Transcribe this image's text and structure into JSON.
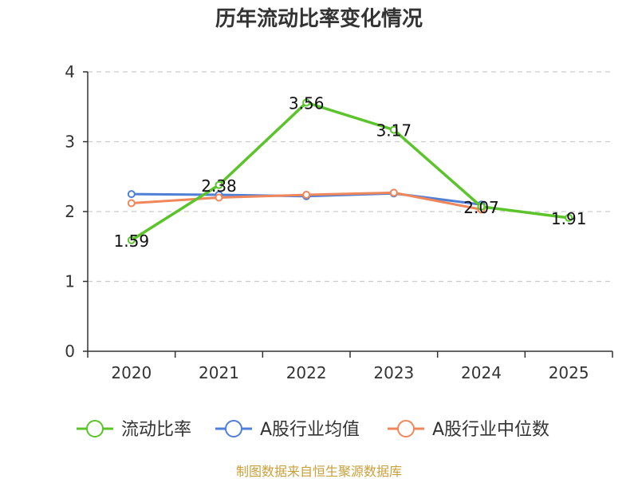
{
  "chart_data": {
    "type": "line",
    "title": "历年流动比率变化情况",
    "categories": [
      "2020",
      "2021",
      "2022",
      "2023",
      "2024",
      "2025"
    ],
    "y_ticks": [
      "0",
      "1",
      "2",
      "3",
      "4"
    ],
    "ylim": [
      0,
      4
    ],
    "grid": true,
    "legend_position": "bottom",
    "series": [
      {
        "name": "流动比率",
        "color": "#5cc42b",
        "values": [
          1.59,
          2.38,
          3.56,
          3.17,
          2.07,
          1.91
        ],
        "labels": [
          "1.59",
          "2.38",
          "3.56",
          "3.17",
          "2.07",
          "1.91"
        ]
      },
      {
        "name": "A股行业均值",
        "color": "#4f7fd6",
        "values": [
          2.25,
          2.24,
          2.22,
          2.26,
          2.1,
          null
        ]
      },
      {
        "name": "A股行业中位数",
        "color": "#f0875a",
        "values": [
          2.12,
          2.2,
          2.24,
          2.27,
          2.03,
          null
        ]
      }
    ],
    "source": "制图数据来自恒生聚源数据库"
  }
}
